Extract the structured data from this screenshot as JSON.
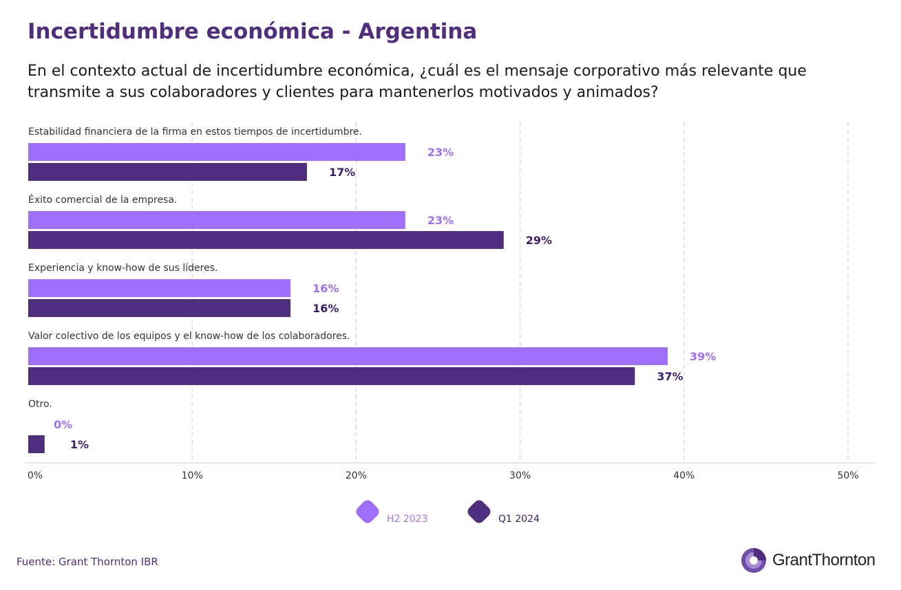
{
  "header": {
    "title": "Incertidumbre económica - Argentina",
    "subtitle": "En el contexto actual de incertidumbre económica, ¿cuál es el mensaje corporativo más relevante que transmite a sus colaboradores y clientes para mantenerlos motivados y animados?"
  },
  "chart_data": {
    "type": "bar",
    "orientation": "horizontal",
    "title": "",
    "xlabel": "",
    "ylabel": "",
    "categories": [
      "Estabilidad financiera de la firma en estos tiempos de incertidumbre.",
      "Éxito comercial de la empresa.",
      "Experiencia y know-how de sus líderes.",
      "Valor colectivo de los equipos y el know-how de los colaboradores.",
      "Otro."
    ],
    "series": [
      {
        "name": "H2 2023",
        "values": [
          23,
          23,
          16,
          39,
          0
        ],
        "labels": [
          "23%",
          "23%",
          "16%",
          "39%",
          "0%"
        ],
        "color": "#9F6FFB",
        "label_color": "#9F6FFB"
      },
      {
        "name": "Q1 2024",
        "values": [
          17,
          29,
          16,
          37,
          1
        ],
        "labels": [
          "17%",
          "29%",
          "16%",
          "37%",
          "1%"
        ],
        "color": "#4F2D7F",
        "label_color": "#3B1E6B"
      }
    ],
    "xlim": [
      0,
      50
    ],
    "xticks": [
      0,
      10,
      20,
      30,
      40,
      50
    ],
    "xtick_labels": [
      "0%",
      "10%",
      "20%",
      "30%",
      "40%",
      "50%"
    ],
    "grid": true,
    "legend_placement": "bottom-center"
  },
  "footer": {
    "source": "Fuente: Grant Thornton IBR",
    "logo_text": "GrantThornton"
  }
}
